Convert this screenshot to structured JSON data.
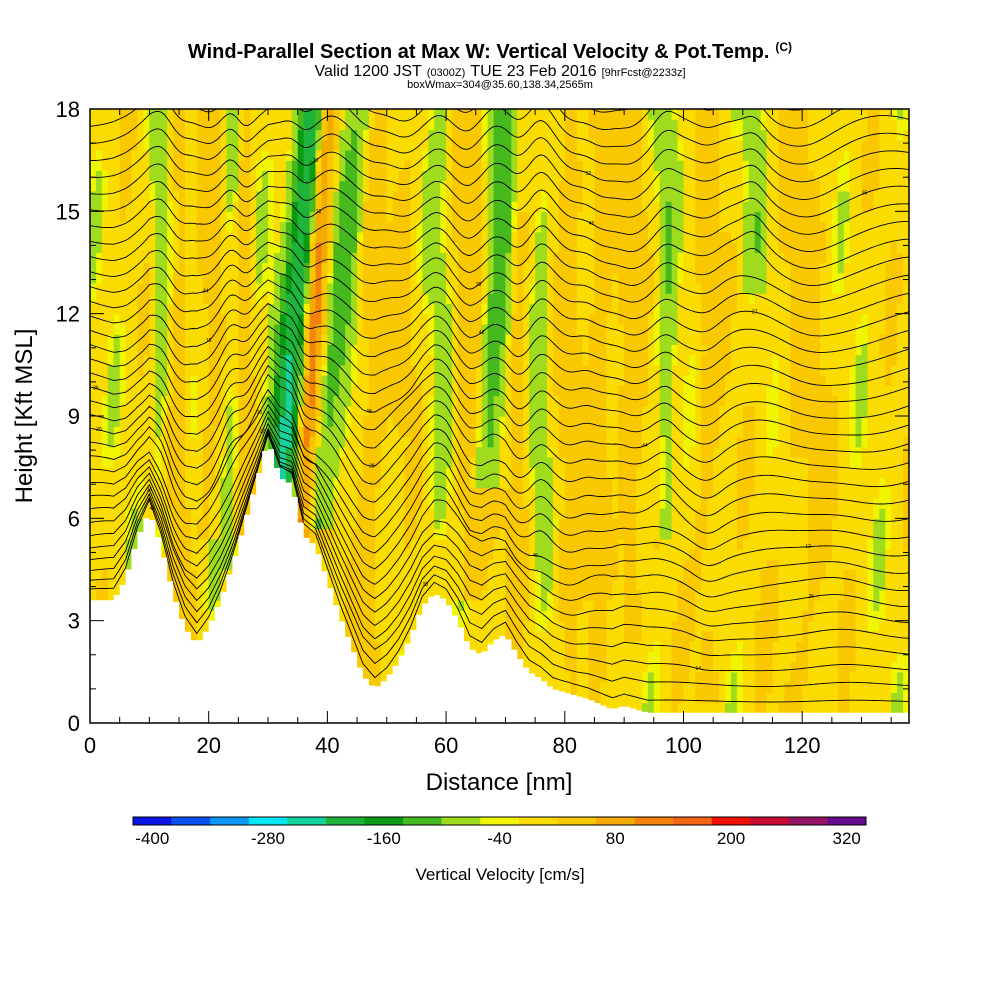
{
  "chart_data": {
    "type": "heatmap",
    "title": "Wind-Parallel Section at Max W: Vertical Velocity & Pot.Temp.",
    "title_mark": "(C)",
    "subtitle_parts": [
      "Valid 1200 JST",
      "(0300Z)",
      "TUE 23 Feb 2016",
      "[9hrFcst@2233z]"
    ],
    "subtitle2": "boxWmax=304@35.60,138.34,2565m",
    "xlabel": "Distance [nm]",
    "ylabel": "Height [Kft MSL]",
    "xlim": [
      0,
      138
    ],
    "ylim": [
      0,
      18
    ],
    "x_ticks": [
      0,
      20,
      40,
      60,
      80,
      100,
      120
    ],
    "y_ticks": [
      0,
      3,
      6,
      9,
      12,
      15,
      18
    ],
    "x_tick_labels": [
      "0",
      "20",
      "40",
      "60",
      "80",
      "100",
      "120"
    ],
    "y_tick_labels": [
      "0",
      "3",
      "6",
      "9",
      "12",
      "15",
      "18"
    ],
    "colorbar": {
      "title": "Vertical Velocity [cm/s]",
      "colors": [
        "#0a14e6",
        "#0a50f0",
        "#0a96f5",
        "#00e6f5",
        "#14d29b",
        "#1eb43c",
        "#0a9b14",
        "#46b91e",
        "#a0dc1e",
        "#f0f500",
        "#fadc00",
        "#fac800",
        "#f5aa00",
        "#f5820a",
        "#f56414",
        "#f00f00",
        "#c80a32",
        "#961464",
        "#640a8c"
      ],
      "tick_values": [
        -400,
        -280,
        -160,
        -40,
        80,
        200,
        320
      ],
      "tick_labels": [
        "-400",
        "-280",
        "-160",
        "-40",
        "80",
        "200",
        "320"
      ]
    },
    "terrain": [
      [
        0,
        3.6
      ],
      [
        4,
        3.6
      ],
      [
        6,
        4.2
      ],
      [
        8,
        5.4
      ],
      [
        10,
        6.2
      ],
      [
        12,
        5.2
      ],
      [
        14,
        3.8
      ],
      [
        16,
        2.8
      ],
      [
        18,
        2.3
      ],
      [
        20,
        2.8
      ],
      [
        22,
        3.6
      ],
      [
        24,
        4.6
      ],
      [
        26,
        5.8
      ],
      [
        28,
        7.0
      ],
      [
        30,
        8.3
      ],
      [
        32,
        7.2
      ],
      [
        34,
        7.0
      ],
      [
        36,
        5.5
      ],
      [
        38,
        5.2
      ],
      [
        40,
        4.2
      ],
      [
        42,
        3.2
      ],
      [
        44,
        2.3
      ],
      [
        46,
        1.4
      ],
      [
        48,
        1.0
      ],
      [
        50,
        1.3
      ],
      [
        52,
        1.8
      ],
      [
        54,
        2.5
      ],
      [
        56,
        3.4
      ],
      [
        58,
        3.8
      ],
      [
        60,
        3.6
      ],
      [
        62,
        3.0
      ],
      [
        64,
        2.2
      ],
      [
        66,
        2.0
      ],
      [
        68,
        2.4
      ],
      [
        70,
        2.6
      ],
      [
        72,
        2.0
      ],
      [
        74,
        1.5
      ],
      [
        76,
        1.3
      ],
      [
        78,
        1.0
      ],
      [
        80,
        0.9
      ],
      [
        84,
        0.7
      ],
      [
        88,
        0.4
      ],
      [
        90,
        0.5
      ],
      [
        94,
        0.3
      ],
      [
        100,
        0.3
      ],
      [
        138,
        0.3
      ]
    ],
    "features": [
      {
        "x": 0,
        "w": 0,
        "ymin": 0,
        "c": 1
      },
      {
        "x": 12,
        "w": 1.8,
        "ymin": 5.5,
        "c": -0.9
      },
      {
        "x": 15,
        "w": 1.5,
        "ymin": 2.8,
        "c": 1.2
      },
      {
        "x": 20,
        "w": 2.0,
        "ymin": 6,
        "c": 0.7
      },
      {
        "x": 24,
        "w": 1.5,
        "ymin": 5,
        "c": -0.8
      },
      {
        "x": 26,
        "w": 1.2,
        "ymin": 6,
        "c": 1.0
      },
      {
        "x": 33.5,
        "w": 2.8,
        "ymin": 6.5,
        "c": -4.5,
        "tilt": -0.15
      },
      {
        "x": 36.8,
        "w": 1.6,
        "ymin": 5.5,
        "c": 5.0,
        "tilt": -0.12
      },
      {
        "x": 40.5,
        "w": 2.6,
        "ymin": 6.2,
        "c": -2.0,
        "tilt": -0.2
      },
      {
        "x": 47,
        "w": 2.5,
        "ymin": 1.5,
        "c": 1.0
      },
      {
        "x": 53,
        "w": 2.0,
        "ymin": 9,
        "c": 0.6
      },
      {
        "x": 59,
        "w": 1.8,
        "ymin": 3.7,
        "c": -0.6
      },
      {
        "x": 64,
        "w": 2.0,
        "ymin": 4,
        "c": 1.4
      },
      {
        "x": 67.5,
        "w": 2.6,
        "ymin": 7.3,
        "c": -2.0,
        "tilt": -0.1
      },
      {
        "x": 72,
        "w": 1.6,
        "ymin": 3.5,
        "c": 1.2
      },
      {
        "x": 76,
        "w": 1.5,
        "ymin": 5,
        "c": -0.9
      },
      {
        "x": 81,
        "w": 1.8,
        "ymin": 0.8,
        "c": 1.0
      },
      {
        "x": 86,
        "w": 1.8,
        "ymin": 4,
        "c": 1.2
      },
      {
        "x": 91,
        "w": 2.0,
        "ymin": 3,
        "c": 1.2
      },
      {
        "x": 97,
        "w": 1.5,
        "ymin": 6,
        "c": -1.2
      },
      {
        "x": 104,
        "w": 2.0,
        "ymin": 1,
        "c": 0.8
      },
      {
        "x": 112,
        "w": 1.5,
        "ymin": 13,
        "c": -1.0
      },
      {
        "x": 120,
        "w": 4,
        "ymin": 0.3,
        "c": 0.6
      }
    ],
    "contour_labels": [
      "34",
      "38",
      "48",
      "29",
      "32",
      "14",
      "12",
      "36",
      "44",
      "16",
      "38",
      "40",
      "44",
      "27",
      "35",
      "40",
      "22",
      "28",
      "42",
      "46",
      "30",
      "26",
      "20",
      "15",
      "18",
      "8"
    ]
  }
}
